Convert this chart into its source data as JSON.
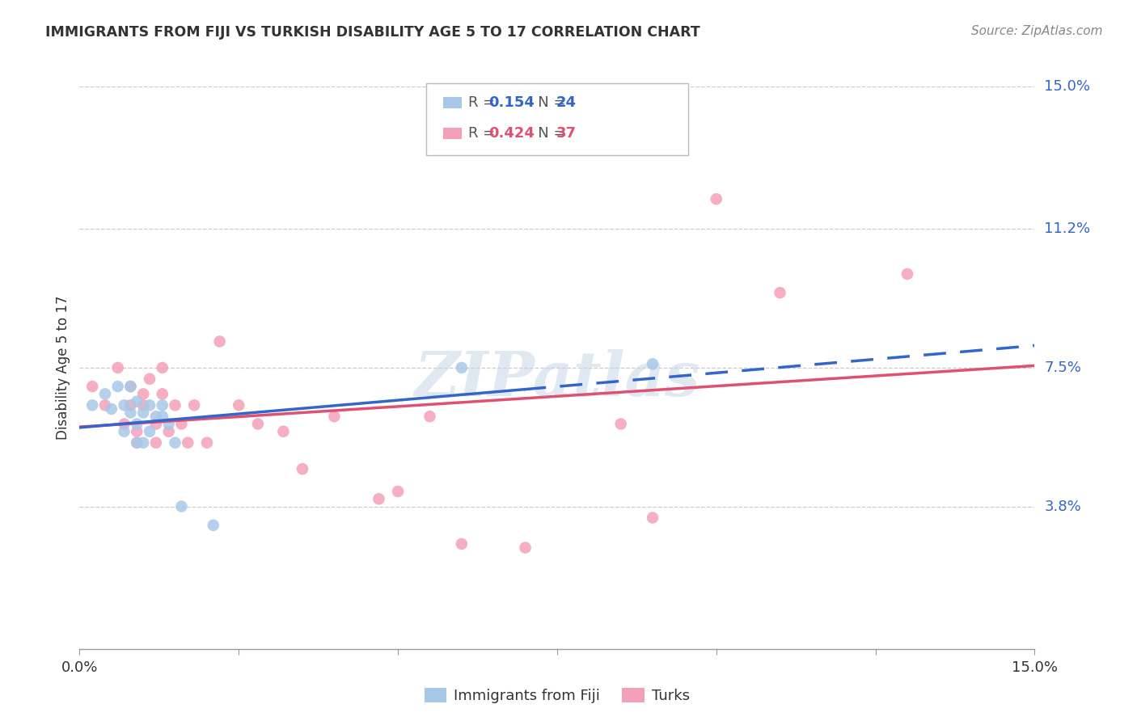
{
  "title": "IMMIGRANTS FROM FIJI VS TURKISH DISABILITY AGE 5 TO 17 CORRELATION CHART",
  "source": "Source: ZipAtlas.com",
  "ylabel": "Disability Age 5 to 17",
  "xlim": [
    0.0,
    0.15
  ],
  "ylim": [
    0.0,
    0.15
  ],
  "y_tick_values": [
    0.038,
    0.075,
    0.112,
    0.15
  ],
  "y_tick_labels": [
    "3.8%",
    "7.5%",
    "11.2%",
    "15.0%"
  ],
  "grid_color": "#cccccc",
  "background_color": "#ffffff",
  "fiji_color": "#a8c8e8",
  "turks_color": "#f4a0b8",
  "fiji_line_color": "#3366cc",
  "turks_line_color": "#e05070",
  "fiji_R": 0.154,
  "fiji_N": 24,
  "turks_R": 0.424,
  "turks_N": 37,
  "fiji_x": [
    0.002,
    0.004,
    0.005,
    0.006,
    0.007,
    0.007,
    0.008,
    0.008,
    0.009,
    0.009,
    0.009,
    0.01,
    0.01,
    0.011,
    0.011,
    0.012,
    0.013,
    0.013,
    0.014,
    0.015,
    0.016,
    0.021,
    0.06,
    0.09
  ],
  "fiji_y": [
    0.065,
    0.068,
    0.064,
    0.07,
    0.065,
    0.058,
    0.063,
    0.07,
    0.066,
    0.06,
    0.055,
    0.063,
    0.055,
    0.065,
    0.058,
    0.062,
    0.065,
    0.062,
    0.06,
    0.055,
    0.038,
    0.033,
    0.075,
    0.076
  ],
  "turks_x": [
    0.002,
    0.004,
    0.006,
    0.007,
    0.008,
    0.008,
    0.009,
    0.009,
    0.01,
    0.01,
    0.011,
    0.012,
    0.012,
    0.013,
    0.013,
    0.014,
    0.015,
    0.016,
    0.017,
    0.018,
    0.02,
    0.022,
    0.025,
    0.028,
    0.032,
    0.035,
    0.04,
    0.047,
    0.05,
    0.055,
    0.06,
    0.07,
    0.085,
    0.09,
    0.1,
    0.11,
    0.13
  ],
  "turks_y": [
    0.07,
    0.065,
    0.075,
    0.06,
    0.065,
    0.07,
    0.058,
    0.055,
    0.068,
    0.065,
    0.072,
    0.06,
    0.055,
    0.068,
    0.075,
    0.058,
    0.065,
    0.06,
    0.055,
    0.065,
    0.055,
    0.082,
    0.065,
    0.06,
    0.058,
    0.048,
    0.062,
    0.04,
    0.042,
    0.062,
    0.028,
    0.027,
    0.06,
    0.035,
    0.12,
    0.095,
    0.1
  ],
  "marker_size": 110,
  "watermark": "ZIPatlas",
  "legend_fiji_label": "Immigrants from Fiji",
  "legend_turks_label": "Turks"
}
